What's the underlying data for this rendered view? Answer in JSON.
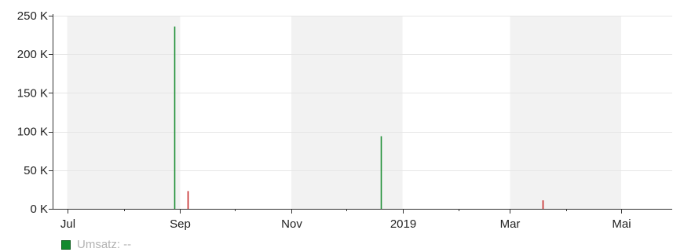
{
  "chart_data": {
    "type": "bar",
    "x_axis": {
      "type": "date",
      "range": [
        "2018-06-23",
        "2019-05-29"
      ],
      "tick_labels": [
        {
          "date": "2018-07-01",
          "label": "Jul"
        },
        {
          "date": "2018-09-01",
          "label": "Sep"
        },
        {
          "date": "2018-11-01",
          "label": "Nov"
        },
        {
          "date": "2019-01-01",
          "label": "2019"
        },
        {
          "date": "2019-03-01",
          "label": "Mar"
        },
        {
          "date": "2019-05-01",
          "label": "Mai"
        }
      ],
      "minor_ticks": [
        "2018-08-01",
        "2018-10-01",
        "2018-12-01",
        "2019-02-01",
        "2019-04-01"
      ]
    },
    "y_axis": {
      "range": [
        0,
        250000
      ],
      "ticks": [
        {
          "value": 0,
          "label": "0 K"
        },
        {
          "value": 50000,
          "label": "50 K"
        },
        {
          "value": 100000,
          "label": "100 K"
        },
        {
          "value": 150000,
          "label": "150 K"
        },
        {
          "value": 200000,
          "label": "200 K"
        },
        {
          "value": 250000,
          "label": "250 K"
        }
      ]
    },
    "grid": true,
    "shaded_bands": [
      [
        "2018-07-01",
        "2018-08-31"
      ],
      [
        "2018-11-01",
        "2018-12-31"
      ],
      [
        "2019-03-01",
        "2019-04-30"
      ]
    ],
    "colors": {
      "positive": "#1e8f34",
      "negative": "#c62828",
      "band": "#f2f2f2",
      "grid": "#e6e6e6"
    },
    "bars": [
      {
        "date": "2018-08-29",
        "value": 236000,
        "sign": "positive"
      },
      {
        "date": "2018-09-05",
        "value": 23000,
        "sign": "negative"
      },
      {
        "date": "2018-12-20",
        "value": 94000,
        "sign": "positive"
      },
      {
        "date": "2019-03-19",
        "value": 11000,
        "sign": "negative"
      }
    ],
    "legend": [
      {
        "label": "Umsatz: --",
        "color": "#138a2e"
      }
    ]
  }
}
